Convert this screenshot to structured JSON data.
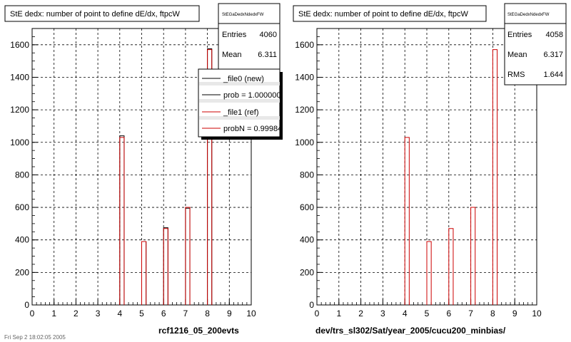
{
  "footer_text": "Fri Sep  2 18:02:05 2005",
  "chart_data": [
    {
      "type": "bar",
      "title": "StE dedx: number of point to define dE/dx, ftpcW",
      "xlabel": "rcf1216_05_200evts",
      "ylabel": "",
      "xlim": [
        0,
        10
      ],
      "ylim": [
        0,
        1700
      ],
      "xticks": [
        "0",
        "1",
        "2",
        "3",
        "4",
        "5",
        "6",
        "7",
        "8",
        "9",
        "10"
      ],
      "yticks": [
        "0",
        "200",
        "400",
        "600",
        "800",
        "1000",
        "1200",
        "1400",
        "1600"
      ],
      "grid": true,
      "bin_width": 0.2,
      "bins_x": [
        4,
        5,
        6,
        7,
        8
      ],
      "series": [
        {
          "name": "_file0 (new)",
          "color": "#000000",
          "values": [
            1040,
            390,
            475,
            595,
            1575
          ]
        },
        {
          "name": "_file1 (ref)",
          "color": "#cc0000",
          "values": [
            1030,
            390,
            470,
            600,
            1570
          ]
        }
      ],
      "stats": {
        "name": "StEGaDedxNdedxFW",
        "entries_label": "Entries",
        "entries": "4060",
        "mean_label": "Mean",
        "mean": "6.311"
      },
      "legend": {
        "position": "top-right",
        "entries": [
          "_file0 (new)",
          "prob = 1.000000",
          "_file1 (ref)",
          "probN = 0.99984"
        ]
      }
    },
    {
      "type": "bar",
      "title": "StE dedx: number of point to define dE/dx, ftpcW",
      "xlabel": "dev/trs_sl302/Sat/year_2005/cucu200_minbias/",
      "ylabel": "",
      "xlim": [
        0,
        10
      ],
      "ylim": [
        0,
        1700
      ],
      "xticks": [
        "0",
        "1",
        "2",
        "3",
        "4",
        "5",
        "6",
        "7",
        "8",
        "9",
        "10"
      ],
      "yticks": [
        "0",
        "200",
        "400",
        "600",
        "800",
        "1000",
        "1200",
        "1400",
        "1600"
      ],
      "grid": true,
      "bin_width": 0.2,
      "bins_x": [
        4,
        5,
        6,
        7,
        8
      ],
      "series": [
        {
          "name": "",
          "color": "#cc0000",
          "values": [
            1030,
            390,
            470,
            600,
            1570
          ]
        }
      ],
      "stats": {
        "name": "StEGaDedxNdedxFW",
        "entries_label": "Entries",
        "entries": "4058",
        "mean_label": "Mean",
        "mean": "6.317",
        "rms_label": "RMS",
        "rms": "1.644"
      }
    }
  ]
}
